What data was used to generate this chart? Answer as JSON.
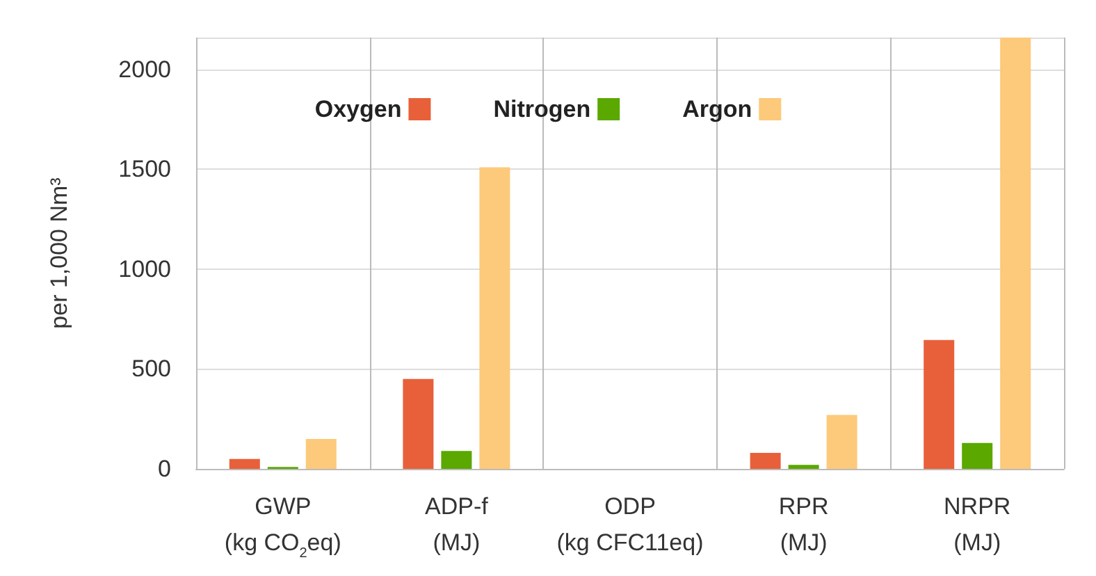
{
  "chart_data": {
    "type": "bar",
    "ylabel": "per 1,000 Nm³",
    "categories": [
      "GWP\n(kg CO$_{2}$eq)",
      "ADP-f\n(MJ)",
      "ODP\n(kg CFC11eq)",
      "RPR\n(MJ)",
      "NRPR\n(MJ)"
    ],
    "series": [
      {
        "name": "Oxygen",
        "color": "#e8603a",
        "values": [
          50,
          450,
          0,
          80,
          645
        ]
      },
      {
        "name": "Nitrogen",
        "color": "#5aa800",
        "values": [
          10,
          90,
          0,
          20,
          130
        ]
      },
      {
        "name": "Argon",
        "color": "#fdc97a",
        "values": [
          150,
          1510,
          0,
          270,
          2160
        ]
      }
    ],
    "ylim": [
      0,
      2160
    ],
    "yticks": [
      0,
      500,
      1000,
      1500,
      2000
    ],
    "grid": true,
    "legend": "top"
  }
}
